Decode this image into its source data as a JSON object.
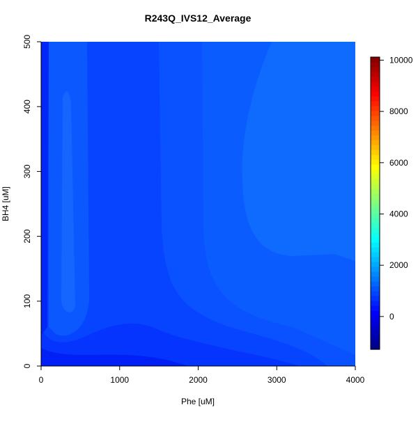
{
  "chart_data": {
    "type": "contour",
    "title": "R243Q_IVS12_Average",
    "x_label": "Phe [uM]",
    "y_label": "BH4 [uM]",
    "xlim": [
      0,
      4000
    ],
    "xticks": [
      0,
      1000,
      2000,
      3000,
      4000
    ],
    "ylim": [
      0,
      500
    ],
    "yticks": [
      0,
      100,
      200,
      300,
      400,
      500
    ],
    "zlim": [
      -1280,
      10120
    ],
    "zticks": [
      0,
      2000,
      4000,
      6000,
      8000,
      10000
    ]
  }
}
